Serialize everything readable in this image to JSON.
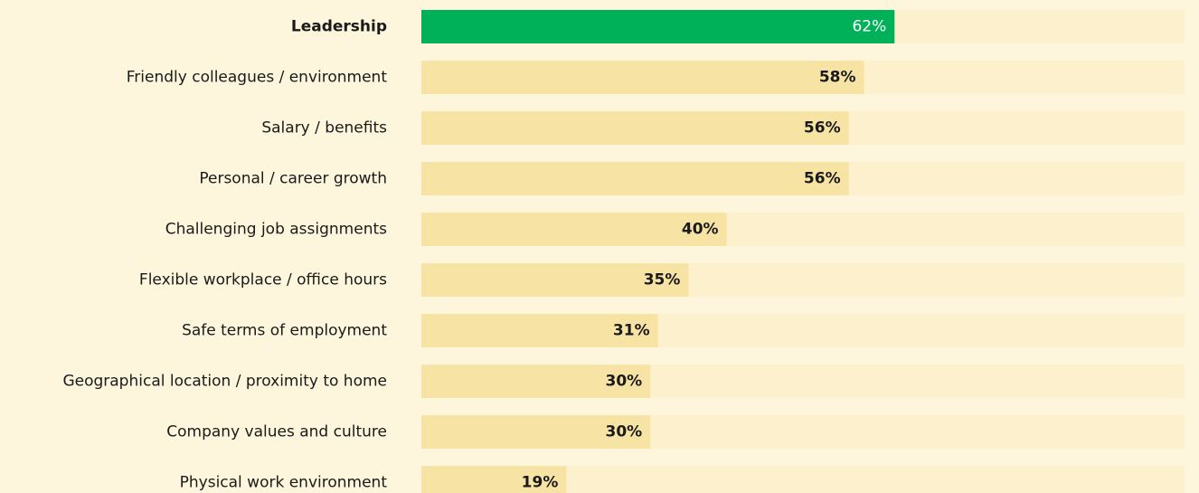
{
  "chart_data": {
    "type": "bar",
    "orientation": "horizontal",
    "categories": [
      "Leadership",
      "Friendly colleagues / environment",
      "Salary / benefits",
      "Personal / career growth",
      "Challenging job assignments",
      "Flexible workplace / office hours",
      "Safe terms of employment",
      "Geographical location / proximity to home",
      "Company values and culture",
      "Physical work environment"
    ],
    "values": [
      62,
      58,
      56,
      56,
      40,
      35,
      31,
      30,
      30,
      19
    ],
    "value_labels": [
      "62%",
      "58%",
      "56%",
      "56%",
      "40%",
      "35%",
      "31%",
      "30%",
      "30%",
      "19%"
    ],
    "color": "#f7e4a5",
    "colors": [
      "#00b15a",
      "#f7e4a5",
      "#f7e4a5",
      "#f7e4a5",
      "#f7e4a5",
      "#f7e4a5",
      "#f7e4a5",
      "#f7e4a5",
      "#f7e4a5",
      "#f7e4a5"
    ],
    "track_color": "#fdf0cc",
    "xlim": [
      0,
      100
    ]
  }
}
